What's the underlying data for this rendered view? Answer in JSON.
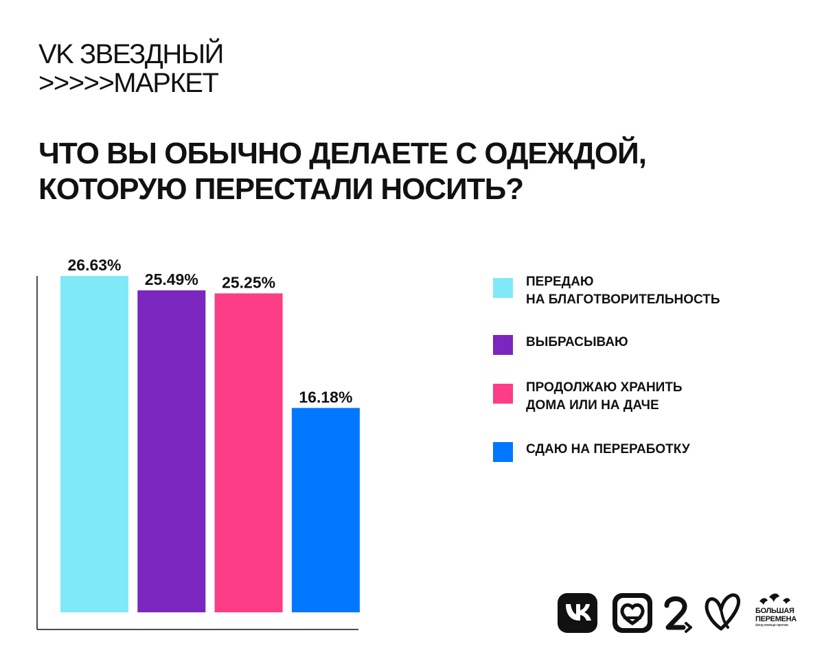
{
  "brand": {
    "line1": "VK ЗВЕЗДНЫЙ",
    "line2": ">>>>>МАРКЕТ"
  },
  "question": {
    "line1": "ЧТО ВЫ ОБЫЧНО ДЕЛАЕТЕ С ОДЕЖДОЙ,",
    "line2": "КОТОРУЮ ПЕРЕСТАЛИ НОСИТЬ?"
  },
  "chart_data": {
    "type": "bar",
    "title": "ЧТО ВЫ ОБЫЧНО ДЕЛАЕТЕ С ОДЕЖДОЙ, КОТОРУЮ ПЕРЕСТАЛИ НОСИТЬ?",
    "categories": [
      "ПЕРЕДАЮ НА БЛАГОТВОРИТЕЛЬНОСТЬ",
      "ВЫБРАСЫВАЮ",
      "ПРОДОЛЖАЮ ХРАНИТЬ ДОМА ИЛИ НА ДАЧЕ",
      "СДАЮ НА ПЕРЕРАБОТКУ"
    ],
    "values": [
      26.63,
      25.49,
      25.25,
      16.18
    ],
    "value_labels": [
      "26.63%",
      "25.49%",
      "25.25%",
      "16.18%"
    ],
    "colors": [
      "#7fe9f7",
      "#7b26bf",
      "#fd3d86",
      "#0077ff"
    ],
    "xlabel": "",
    "ylabel": "",
    "ylim": [
      0,
      26.63
    ],
    "grid": false,
    "legend_position": "right"
  },
  "legend": {
    "items": [
      {
        "line1": "ПЕРЕДАЮ",
        "line2": "НА БЛАГОТВОРИТЕЛЬНОСТЬ",
        "color": "#7fe9f7"
      },
      {
        "line1": "ВЫБРАСЫВАЮ",
        "line2": "",
        "color": "#7b26bf"
      },
      {
        "line1": "ПРОДОЛЖАЮ ХРАНИТЬ",
        "line2": "ДОМА ИЛИ НА ДАЧЕ",
        "color": "#fd3d86"
      },
      {
        "line1": "СДАЮ НА ПЕРЕРАБОТКУ",
        "line2": "",
        "color": "#0077ff"
      }
    ]
  },
  "logos": {
    "items": [
      {
        "icon": "vk-logo-icon"
      },
      {
        "icon": "vk-dobro-heart-logo-icon"
      },
      {
        "icon": "number-two-arrow-logo-icon"
      },
      {
        "icon": "butterfly-heart-logo-icon"
      },
      {
        "icon": "birds-logo-icon"
      }
    ],
    "bolshaya_peremena": {
      "line1": "БОЛЬШАЯ",
      "line2": "ПЕРЕМЕНА",
      "sub": "фонд помощи сиротам"
    }
  }
}
